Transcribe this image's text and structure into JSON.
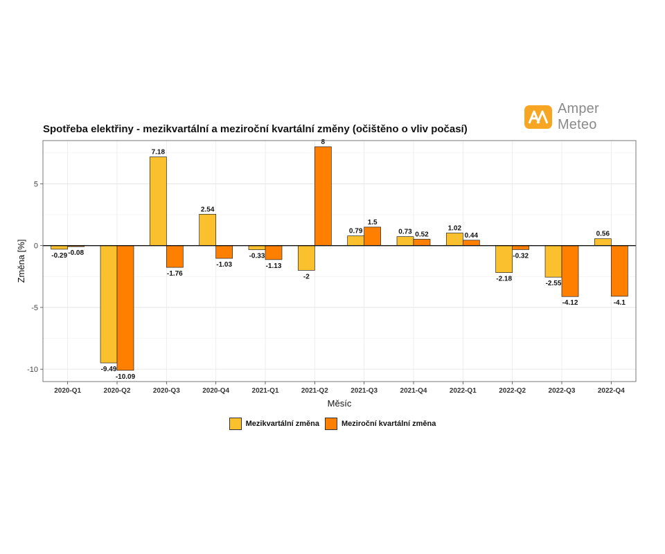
{
  "logo": {
    "text": "Amper Meteo",
    "icon": "amper-meteo-logo-icon",
    "color": "#f6a623"
  },
  "chart_data": {
    "type": "bar",
    "title": "Spotřeba elektřiny - mezikvartální a meziroční kvartální změny (očištěno o vliv počasí)",
    "xlabel": "Měsíc",
    "ylabel": "Změna [%]",
    "ylim": [
      -11,
      8.5
    ],
    "yticks": [
      -10,
      -5,
      0,
      5
    ],
    "grid": true,
    "legend_position": "bottom",
    "categories": [
      "2020-Q1",
      "2020-Q2",
      "2020-Q3",
      "2020-Q4",
      "2021-Q1",
      "2021-Q2",
      "2021-Q3",
      "2021-Q4",
      "2022-Q1",
      "2022-Q2",
      "2022-Q3",
      "2022-Q4"
    ],
    "series": [
      {
        "name": "Mezikvartální změna",
        "color": "#fbc02d",
        "values": [
          -0.29,
          -9.49,
          7.18,
          2.54,
          -0.33,
          -2,
          0.79,
          0.73,
          1.02,
          -2.18,
          -2.55,
          0.56
        ]
      },
      {
        "name": "Meziroční kvartální změna",
        "color": "#ff7f00",
        "values": [
          -0.08,
          -10.09,
          -1.76,
          -1.03,
          -1.13,
          8,
          1.5,
          0.52,
          0.44,
          -0.32,
          -4.12,
          -4.1
        ]
      }
    ]
  }
}
